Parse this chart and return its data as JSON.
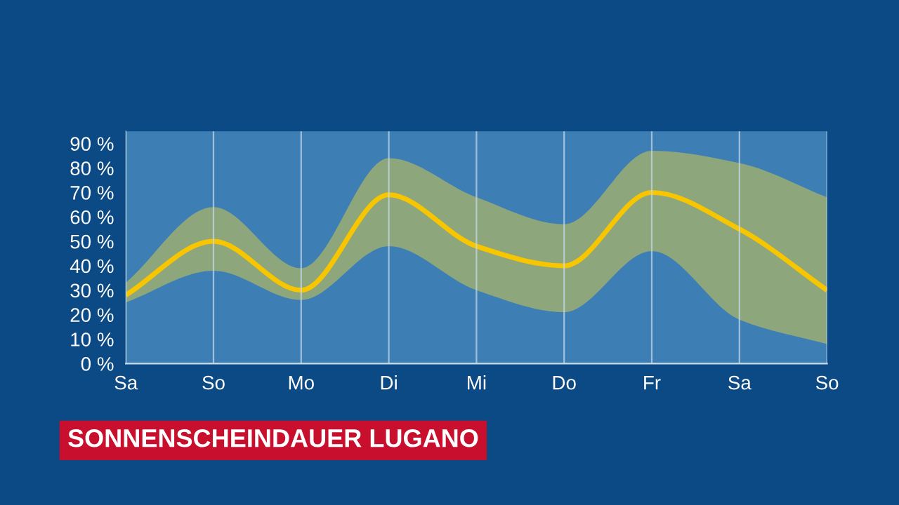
{
  "chart_data": {
    "type": "line",
    "title": "SONNENSCHEINDAUER LUGANO",
    "categories": [
      "Sa",
      "So",
      "Mo",
      "Di",
      "Mi",
      "Do",
      "Fr",
      "Sa",
      "So"
    ],
    "series": [
      {
        "color": "#f7c600",
        "values": [
          28,
          50,
          30,
          69,
          48,
          40,
          70,
          55,
          30
        ],
        "lower": [
          25,
          38,
          26,
          48,
          30,
          21,
          46,
          18,
          8
        ],
        "upper": [
          33,
          64,
          39,
          84,
          68,
          57,
          87,
          82,
          68
        ]
      }
    ],
    "ylim": [
      0,
      95
    ],
    "yticks": [
      {
        "value": 0,
        "label": "0 %"
      },
      {
        "value": 10,
        "label": "10 %"
      },
      {
        "value": 20,
        "label": "20 %"
      },
      {
        "value": 30,
        "label": "30 %"
      },
      {
        "value": 40,
        "label": "40 %"
      },
      {
        "value": 50,
        "label": "50 %"
      },
      {
        "value": 60,
        "label": "60 %"
      },
      {
        "value": 70,
        "label": "70 %"
      },
      {
        "value": 80,
        "label": "80 %"
      },
      {
        "value": 90,
        "label": "90 %"
      }
    ],
    "grid": "x",
    "legend": false,
    "line_style": "solid",
    "marker": "none"
  }
}
